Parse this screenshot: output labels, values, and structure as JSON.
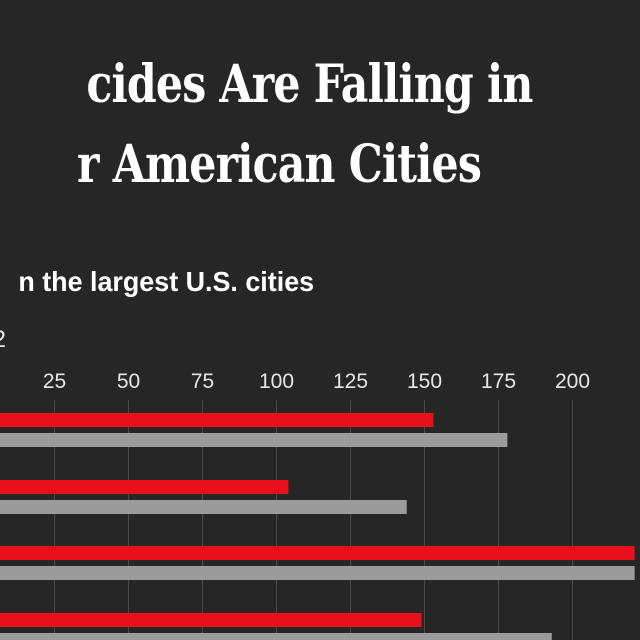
{
  "title_lines": [
    "cides Are Falling in",
    "r American Cities"
  ],
  "subtitle": "n the largest U.S. cities",
  "note": "2",
  "colors": {
    "background": "#262626",
    "highlight": "#e8101c",
    "comparison": "#9b9b9b",
    "grid": "#4a4a4a",
    "text": "#ffffff"
  },
  "chart_data": {
    "type": "bar",
    "orientation": "horizontal",
    "title": "cides Are Falling in r American Cities",
    "subtitle": "n the largest U.S. cities",
    "x_ticks": [
      25,
      50,
      75,
      100,
      125,
      150,
      175,
      200
    ],
    "grid": true,
    "bar_pairs": [
      {
        "red": 153,
        "gray": 178
      },
      {
        "red": 104,
        "gray": 144
      },
      {
        "red": 221,
        "gray": 221
      },
      {
        "red": 149,
        "gray": 193
      }
    ]
  }
}
